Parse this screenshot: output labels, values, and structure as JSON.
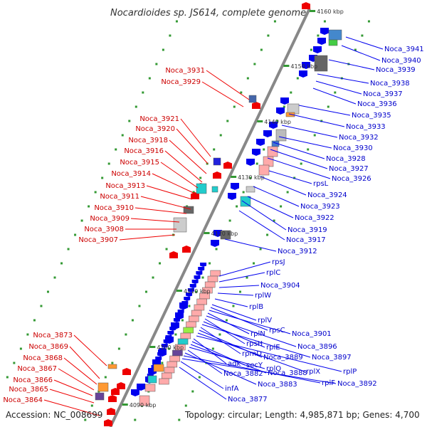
{
  "title": "Nocardioides sp. JS614, complete genome",
  "accession": "Accession: NC_008699",
  "summary": "Topology: circular; Length: 4,985,871 bp; Genes: 4,700",
  "colors": {
    "forward_strand": "#ee0000",
    "reverse_strand": "#0000ee",
    "backbone": "#777777",
    "ticks": "#339933"
  },
  "tick_labels": [
    "4160 kbp",
    "4150 kbp",
    "4140 kbp",
    "4130 kbp",
    "4120 kbp",
    "4110 kbp",
    "4100 kbp",
    "4090 kbp"
  ],
  "left_labels": [
    "Noca_3931",
    "Noca_3929",
    "Noca_3921",
    "Noca_3920",
    "Noca_3918",
    "Noca_3916",
    "Noca_3915",
    "Noca_3914",
    "Noca_3913",
    "Noca_3911",
    "Noca_3910",
    "Noca_3909",
    "Noca_3908",
    "Noca_3907",
    "Noca_3873",
    "Noca_3869",
    "Noca_3868",
    "Noca_3867",
    "Noca_3866",
    "Noca_3865",
    "Noca_3864"
  ],
  "right_labels": [
    "Noca_3941",
    "Noca_3940",
    "Noca_3939",
    "Noca_3938",
    "Noca_3937",
    "Noca_3936",
    "Noca_3935",
    "Noca_3933",
    "Noca_3932",
    "Noca_3930",
    "Noca_3928",
    "Noca_3927",
    "Noca_3926",
    "rpsL",
    "Noca_3924",
    "Noca_3923",
    "Noca_3922",
    "Noca_3919",
    "Noca_3917",
    "Noca_3912",
    "rpsJ",
    "rplC",
    "Noca_3904",
    "rplW",
    "rplB",
    "rplV",
    "rpsC",
    "Noca_3901",
    "rplN",
    "Noca_3896",
    "rpsH",
    "rplE",
    "Noca_3897",
    "rpmD",
    "Noca_3889",
    "rplX",
    "rplP",
    "adk",
    "secY",
    "Noca_3888",
    "rplO",
    "Noca_3882",
    "Noca_3883",
    "rplF",
    "Noca_3892",
    "infA",
    "Noca_3877"
  ]
}
